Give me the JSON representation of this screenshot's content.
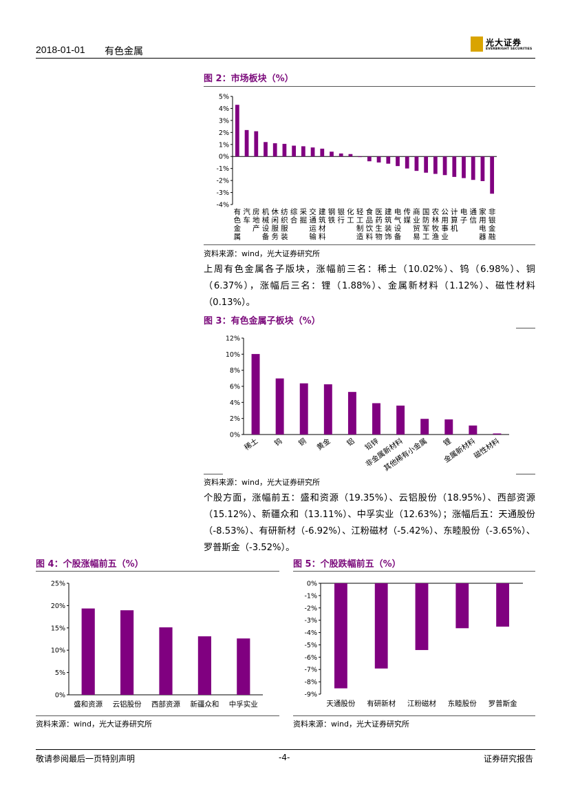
{
  "header": {
    "date": "2018-01-01",
    "section": "有色金属",
    "logo_cn": "光大证券",
    "logo_en": "EVERBRIGHT SECURITIES"
  },
  "colors": {
    "accent": "#7b0a7b",
    "bar": "#800080",
    "logo": "#d9a400"
  },
  "fig2": {
    "title": "图 2：市场板块（%）",
    "source": "资料来源：wind，光大证券研究所",
    "chart_data": {
      "type": "bar",
      "categories": [
        "有色金属",
        "汽车",
        "房地产",
        "机械设备",
        "休闲服务",
        "纺织服装",
        "综合",
        "采掘",
        "交通运输",
        "建筑材料",
        "钢铁",
        "银行",
        "化工",
        "轻工制造",
        "食品饮料",
        "医药生物",
        "建筑装饰",
        "电气设备",
        "传媒",
        "商业贸易",
        "国防军工",
        "农林牧渔",
        "公用事业",
        "计算机",
        "电子",
        "通信",
        "家用电器",
        "非银金融"
      ],
      "values": [
        4.3,
        2.2,
        2.1,
        1.2,
        1.1,
        1.05,
        0.9,
        0.85,
        0.75,
        0.65,
        0.4,
        0.25,
        0.2,
        -0.05,
        -0.4,
        -0.5,
        -0.6,
        -0.8,
        -1.0,
        -1.2,
        -1.35,
        -1.45,
        -1.55,
        -1.7,
        -1.8,
        -1.95,
        -2.05,
        -3.1
      ],
      "ylim": [
        -4,
        5
      ],
      "yticks": [
        "5%",
        "4%",
        "3%",
        "2%",
        "1%",
        "0%",
        "-1%",
        "-2%",
        "-3%",
        "-4%"
      ]
    }
  },
  "para1": "上周有色金属各子版块，涨幅前三名：稀土（10.02%）、钨（6.98%）、铜（6.37%），涨幅后三名：锂（1.88%）、金属新材料（1.12%）、磁性材料（0.13%）。",
  "fig3": {
    "title": "图 3：有色金属子板块（%）",
    "source": "资料来源：wind，光大证券研究所",
    "chart_data": {
      "type": "bar",
      "categories": [
        "稀土",
        "钨",
        "铜",
        "黄金",
        "铝",
        "铅锌",
        "非金属新材料",
        "其他稀有小金属",
        "锂",
        "金属新材料",
        "磁性材料"
      ],
      "values": [
        10.02,
        6.98,
        6.37,
        6.25,
        5.3,
        3.9,
        3.6,
        1.95,
        1.88,
        1.12,
        0.13
      ],
      "ylim": [
        0,
        12
      ],
      "yticks": [
        "12%",
        "10%",
        "8%",
        "6%",
        "4%",
        "2%",
        "0%"
      ]
    }
  },
  "para2": "个股方面，涨幅前五：盛和资源（19.35%）、云铝股份（18.95%）、西部资源（15.12%）、新疆众和（13.11%）、中孚实业（12.63%）；涨幅后五：天通股份（-8.53%）、有研新材（-6.92%）、江粉磁材（-5.42%）、东睦股份（-3.65%）、罗普斯金（-3.52%）。",
  "fig4": {
    "title": "图 4：个股涨幅前五（%）",
    "source": "资料来源：wind，光大证券研究所",
    "chart_data": {
      "type": "bar",
      "categories": [
        "盛和资源",
        "云铝股份",
        "西部资源",
        "新疆众和",
        "中孚实业"
      ],
      "values": [
        19.35,
        18.95,
        15.12,
        13.11,
        12.63
      ],
      "ylim": [
        0,
        25
      ],
      "yticks": [
        "25%",
        "20%",
        "15%",
        "10%",
        "5%",
        "0%"
      ]
    }
  },
  "fig5": {
    "title": "图 5：个股跌幅前五（%）",
    "source": "资料来源：wind，光大证券研究所",
    "chart_data": {
      "type": "bar",
      "categories": [
        "天通股份",
        "有研新材",
        "江粉磁材",
        "东睦股份",
        "罗普斯金"
      ],
      "values": [
        -8.53,
        -6.92,
        -5.42,
        -3.65,
        -3.52
      ],
      "ylim": [
        -9,
        0
      ],
      "yticks": [
        "0%",
        "-1%",
        "-2%",
        "-3%",
        "-4%",
        "-5%",
        "-6%",
        "-7%",
        "-8%",
        "-9%"
      ]
    }
  },
  "footer": {
    "left": "敬请参阅最后一页特别声明",
    "center": "-4-",
    "right": "证券研究报告"
  }
}
